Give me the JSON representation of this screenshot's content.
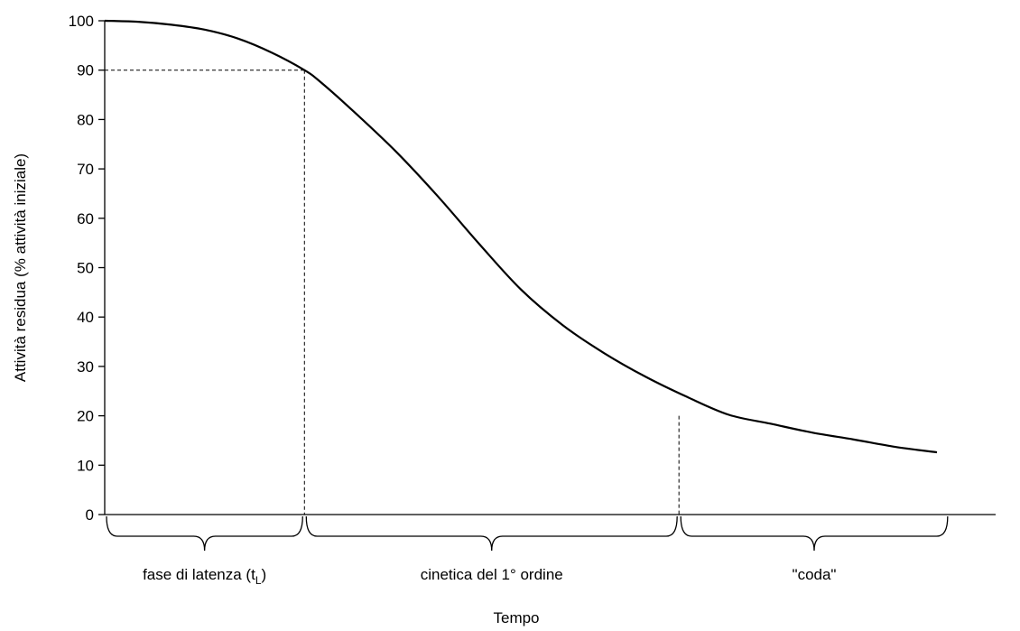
{
  "chart_data": {
    "type": "line",
    "title": "",
    "xlabel": "Tempo",
    "ylabel": "Attività residua (% attività iniziale)",
    "ylim": [
      0,
      100
    ],
    "yticks": [
      "0",
      "10",
      "20",
      "30",
      "40",
      "50",
      "60",
      "70",
      "80",
      "90",
      "100"
    ],
    "xlim": [
      0,
      100
    ],
    "grid": false,
    "series": [
      {
        "x": [
          0,
          4,
          8,
          12,
          16,
          20,
          24,
          26,
          30,
          35,
          40,
          45,
          50,
          55,
          60,
          65,
          70,
          75,
          80,
          85,
          90,
          95,
          100
        ],
        "values": [
          100,
          99.8,
          99.2,
          98.2,
          96.4,
          93.6,
          90,
          87.5,
          81.5,
          73.5,
          64.5,
          54.8,
          45.6,
          38.4,
          32.7,
          27.9,
          23.8,
          20.2,
          18.4,
          16.6,
          15.2,
          13.7,
          12.6
        ]
      }
    ],
    "reference_points": [
      {
        "x": 24,
        "y": 90
      },
      {
        "x": 69,
        "y": 20
      }
    ],
    "phases": [
      {
        "x_start": 0,
        "x_end": 24,
        "label_main": "fase di latenza (t",
        "label_sub": "L",
        "label_end": ")"
      },
      {
        "x_start": 24,
        "x_end": 69,
        "label_main": "cinetica del 1° ordine",
        "label_sub": "",
        "label_end": ""
      },
      {
        "x_start": 69,
        "x_end": 101.5,
        "label_main": "\"coda\"",
        "label_sub": "",
        "label_end": ""
      }
    ]
  }
}
